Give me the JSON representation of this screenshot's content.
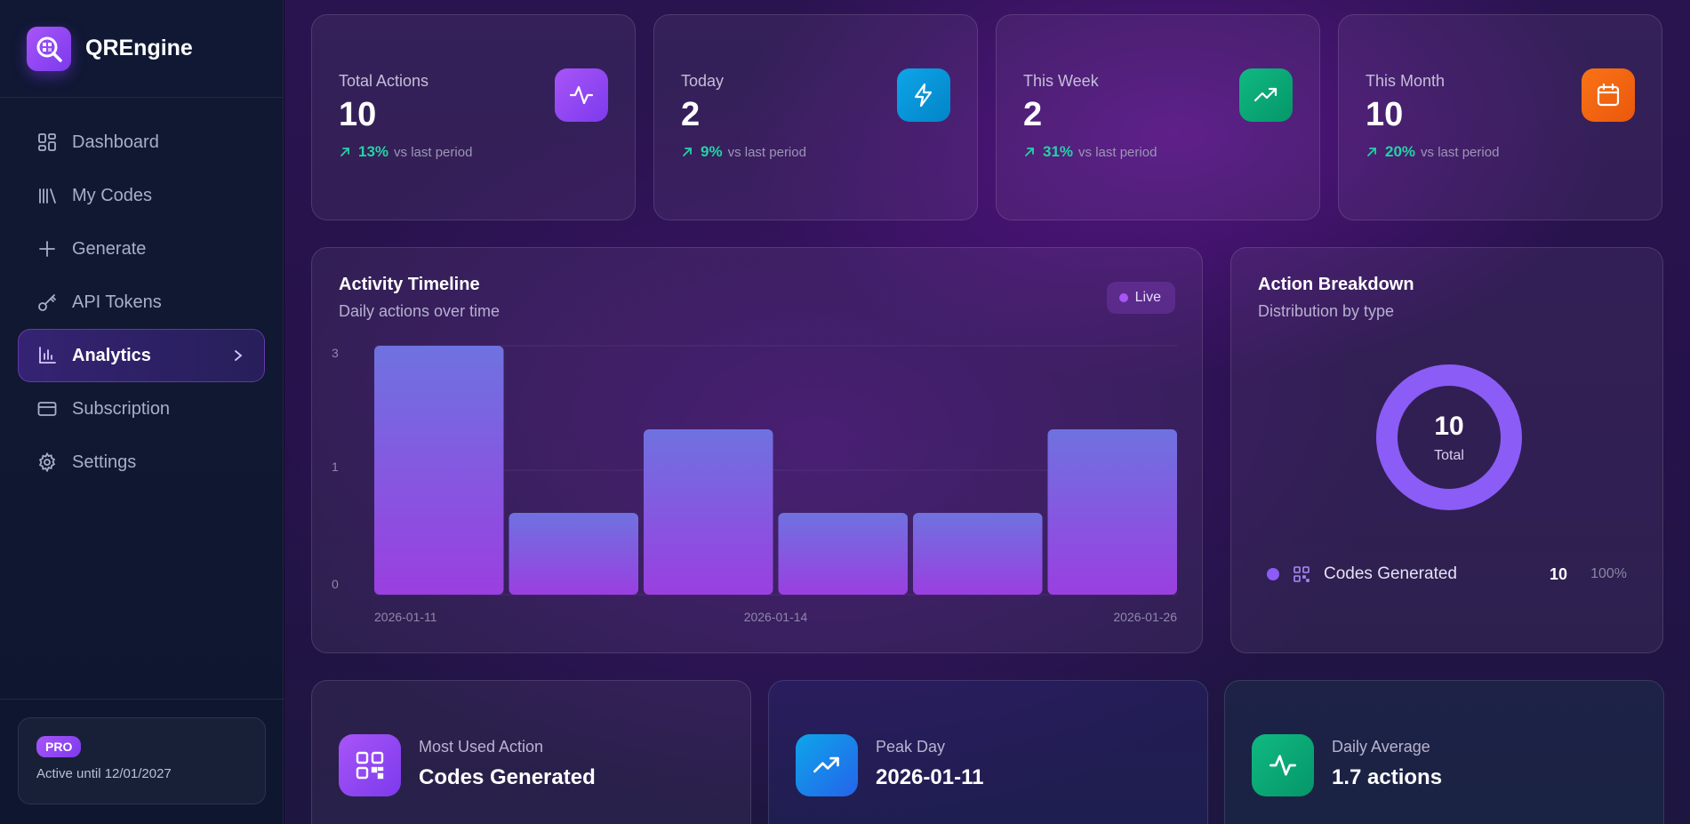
{
  "brand": {
    "name": "QREngine"
  },
  "sidebar": {
    "items": [
      {
        "label": "Dashboard",
        "icon": "dashboard-icon"
      },
      {
        "label": "My Codes",
        "icon": "library-icon"
      },
      {
        "label": "Generate",
        "icon": "plus-icon"
      },
      {
        "label": "API Tokens",
        "icon": "key-icon"
      },
      {
        "label": "Analytics",
        "icon": "bar-chart-icon",
        "active": true
      },
      {
        "label": "Subscription",
        "icon": "credit-card-icon"
      },
      {
        "label": "Settings",
        "icon": "gear-icon"
      }
    ],
    "plan": {
      "badge": "PRO",
      "status": "Active until 12/01/2027"
    }
  },
  "stats": [
    {
      "label": "Total Actions",
      "value": "10",
      "pct": "13%",
      "suffix": "vs last period",
      "icon": "activity-icon",
      "color": "#8b5cf6"
    },
    {
      "label": "Today",
      "value": "2",
      "pct": "9%",
      "suffix": "vs last period",
      "icon": "lightning-icon",
      "color": "#0ea5e9"
    },
    {
      "label": "This Week",
      "value": "2",
      "pct": "31%",
      "suffix": "vs last period",
      "icon": "trending-up-icon",
      "color": "#10b981"
    },
    {
      "label": "This Month",
      "value": "10",
      "pct": "20%",
      "suffix": "vs last period",
      "icon": "calendar-icon",
      "color": "#f97316"
    }
  ],
  "timeline": {
    "title": "Activity Timeline",
    "subtitle": "Daily actions over time",
    "live_label": "Live"
  },
  "breakdown": {
    "title": "Action Breakdown",
    "subtitle": "Distribution by type",
    "total_value": "10",
    "total_label": "Total",
    "legend": [
      {
        "label": "Codes Generated",
        "count": "10",
        "pct": "100%",
        "color": "#8b5cf6"
      }
    ]
  },
  "bottom_cards": [
    {
      "label": "Most Used Action",
      "value": "Codes Generated",
      "icon": "qr-code-icon",
      "color": "#8b5cf6"
    },
    {
      "label": "Peak Day",
      "value": "2026-01-11",
      "icon": "trending-up-icon",
      "color": "#0ea5e9"
    },
    {
      "label": "Daily Average",
      "value": "1.7 actions",
      "icon": "activity-icon",
      "color": "#10b981"
    }
  ],
  "chart_data": {
    "type": "bar",
    "categories": [
      "2026-01-11",
      "",
      "",
      "",
      "",
      "2026-01-26"
    ],
    "x_tick_labels": [
      "2026-01-11",
      "2026-01-14",
      "2026-01-26"
    ],
    "values": [
      3,
      1,
      2,
      1,
      1,
      2
    ],
    "y_tick_labels": [
      "3",
      "1",
      "0"
    ],
    "ylim": [
      0,
      3
    ],
    "grid": true,
    "bar_color_top": "#6f72e0",
    "bar_color_bottom": "#9a3fe0"
  }
}
